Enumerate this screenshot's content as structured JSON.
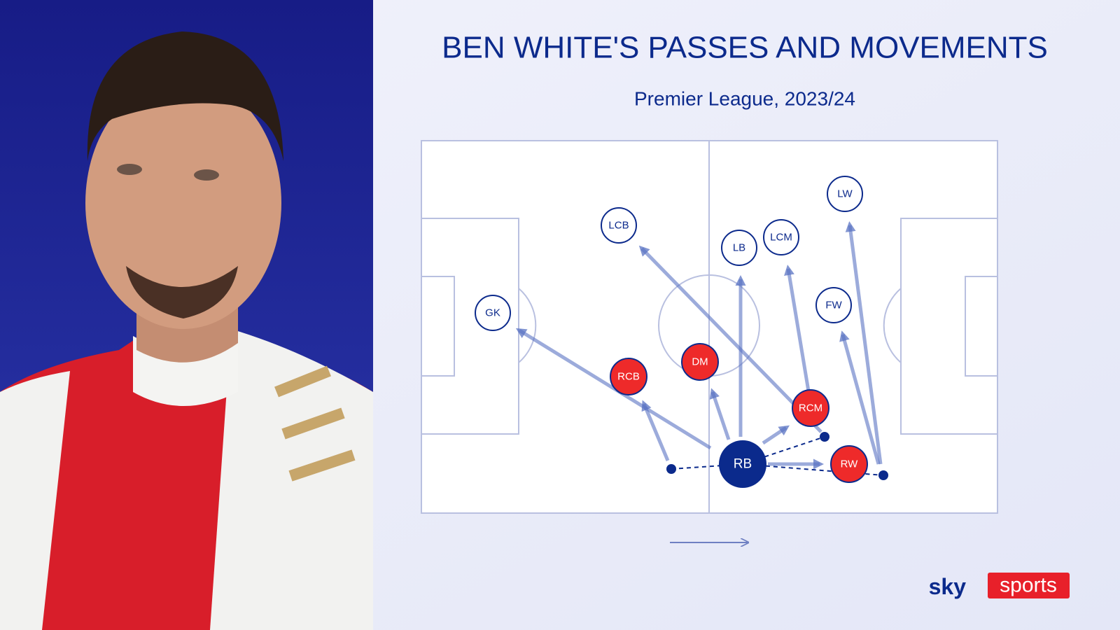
{
  "header": {
    "title": "BEN WHITE'S PASSES AND MOVEMENTS",
    "subtitle": "Premier League, 2023/24"
  },
  "nodes": [
    {
      "label": "GK"
    },
    {
      "label": "LCB"
    },
    {
      "label": "LB"
    },
    {
      "label": "LCM"
    },
    {
      "label": "LW"
    },
    {
      "label": "FW"
    },
    {
      "label": "DM"
    },
    {
      "label": "RCB"
    },
    {
      "label": "RCM"
    },
    {
      "label": "RW"
    },
    {
      "label": "RB"
    }
  ],
  "logo": {
    "brand": "sky",
    "product": "sports"
  }
}
